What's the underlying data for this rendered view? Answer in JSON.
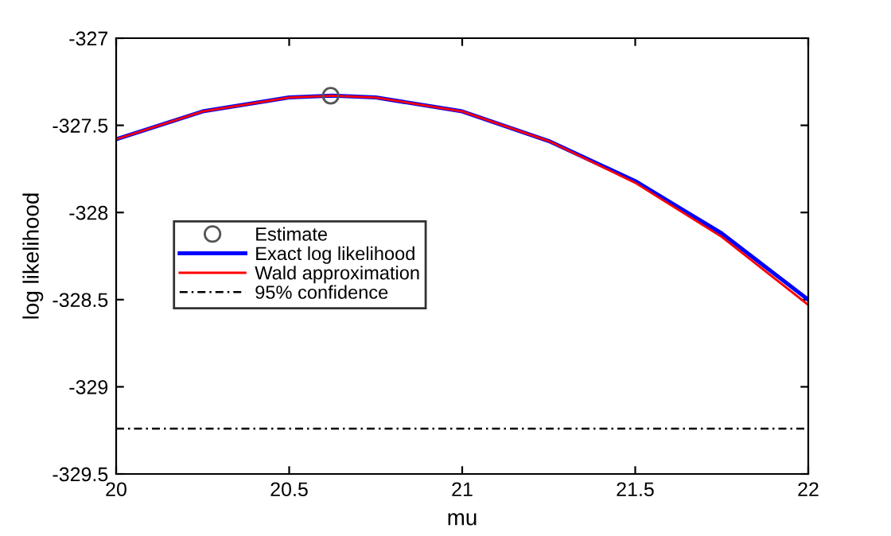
{
  "chart_data": {
    "type": "line",
    "xlabel": "mu",
    "ylabel": "log likelihood",
    "xlim": [
      20,
      22
    ],
    "ylim": [
      -329.5,
      -327
    ],
    "xticks": [
      20,
      20.5,
      21,
      21.5,
      22
    ],
    "yticks": [
      -329.5,
      -329,
      -328.5,
      -328,
      -327.5,
      -327
    ],
    "grid": false,
    "legend": "left",
    "series": [
      {
        "name": "Estimate",
        "type": "scatter",
        "marker": "circle",
        "color": "#555555",
        "x": [
          20.62
        ],
        "values": [
          -327.33
        ]
      },
      {
        "name": "Exact log likelihood",
        "color": "#0000ff",
        "x": [
          20,
          20.25,
          20.5,
          20.625,
          20.75,
          21,
          21.25,
          21.5,
          21.75,
          22
        ],
        "values": [
          -327.58,
          -327.42,
          -327.34,
          -327.33,
          -327.34,
          -327.42,
          -327.59,
          -327.82,
          -328.12,
          -328.5
        ]
      },
      {
        "name": "Wald approximation",
        "color": "#ff0000",
        "x": [
          20,
          20.25,
          20.5,
          20.625,
          20.75,
          21,
          21.25,
          21.5,
          21.75,
          22
        ],
        "values": [
          -327.58,
          -327.42,
          -327.34,
          -327.33,
          -327.34,
          -327.42,
          -327.59,
          -327.83,
          -328.14,
          -328.53
        ]
      }
    ],
    "ref_lines": [
      {
        "axis": "y",
        "value": -329.24,
        "label": "95% confidence",
        "color": "#000000",
        "line_style": "dotted"
      }
    ]
  }
}
